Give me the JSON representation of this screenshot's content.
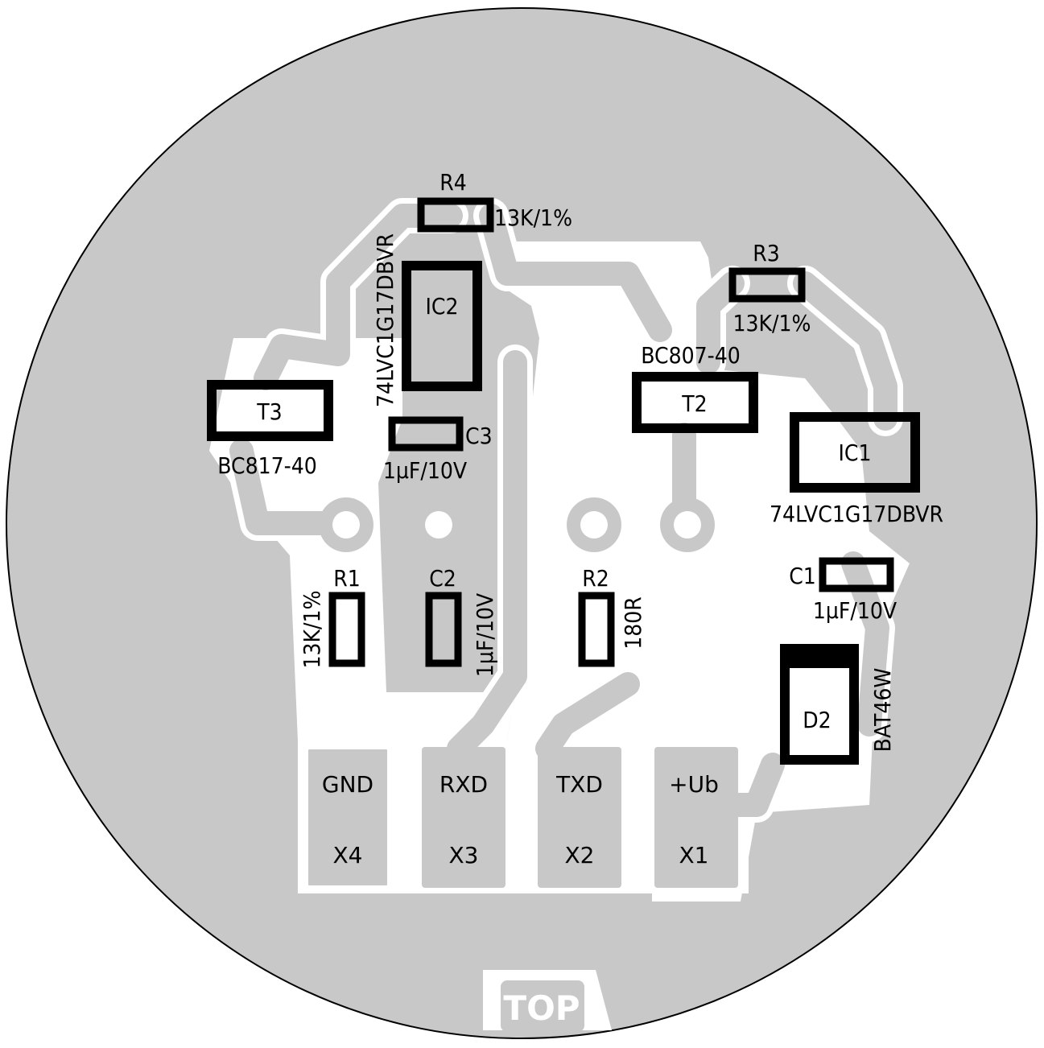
{
  "board": {
    "side_label": "TOP",
    "colors": {
      "copper": "#c8c8c8",
      "clearance": "#ffffff",
      "silkscreen": "#000000",
      "outline": "#000000"
    }
  },
  "components": {
    "R4": {
      "ref": "R4",
      "value": "13K/1%"
    },
    "IC2": {
      "ref": "IC2",
      "value": "74LVC1G17DBVR"
    },
    "R3": {
      "ref": "R3",
      "value": "13K/1%"
    },
    "T2": {
      "ref": "T2",
      "value": "BC807-40"
    },
    "T3": {
      "ref": "T3",
      "value": "BC817-40"
    },
    "C3": {
      "ref": "C3",
      "value": "1µF/10V"
    },
    "IC1": {
      "ref": "IC1",
      "value": "74LVC1G17DBVR"
    },
    "C1": {
      "ref": "C1",
      "value": "1µF/10V"
    },
    "R1": {
      "ref": "R1",
      "value": "13K/1%"
    },
    "C2": {
      "ref": "C2",
      "value": "1µF/10V"
    },
    "R2": {
      "ref": "R2",
      "value": "180R"
    },
    "D2": {
      "ref": "D2",
      "value": "BAT46W"
    }
  },
  "connectors": [
    {
      "signal": "GND",
      "ref": "X4"
    },
    {
      "signal": "RXD",
      "ref": "X3"
    },
    {
      "signal": "TXD",
      "ref": "X2"
    },
    {
      "signal": "+Ub",
      "ref": "X1"
    }
  ]
}
